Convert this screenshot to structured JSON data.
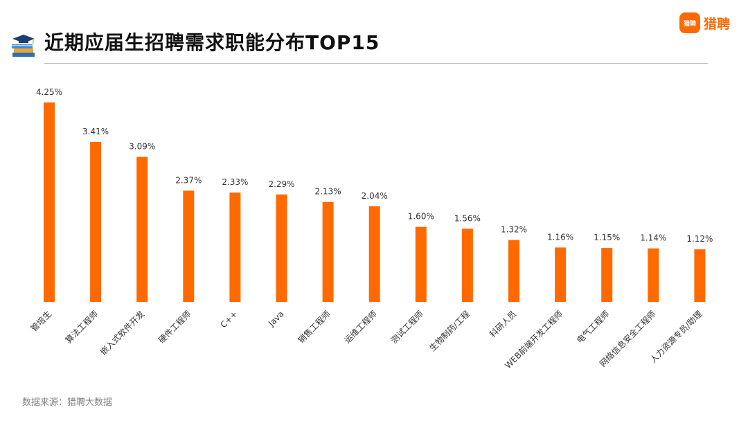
{
  "header": {
    "title": "近期应届生招聘需求职能分布TOP15",
    "icon": "graduation-books-icon",
    "brand_mark": "猎聘",
    "brand_text": "猎聘"
  },
  "source_note": "数据来源：猎聘大数据",
  "colors": {
    "bar": "#ff6a00",
    "title": "#111111",
    "label": "#333333",
    "source": "#7f7f7f"
  },
  "chart_data": {
    "type": "bar",
    "title": "近期应届生招聘需求职能分布TOP15",
    "categories": [
      "管培生",
      "算法工程师",
      "嵌入式软件开发",
      "硬件工程师",
      "C++",
      "Java",
      "销售工程师",
      "运维工程师",
      "测试工程师",
      "生物制药/工程",
      "科研人员",
      "WEB前端开发工程师",
      "电气工程师",
      "网络信息安全工程师",
      "人力资源专员/助理"
    ],
    "values": [
      4.25,
      3.41,
      3.09,
      2.37,
      2.33,
      2.29,
      2.13,
      2.04,
      1.6,
      1.56,
      1.32,
      1.16,
      1.15,
      1.14,
      1.12
    ],
    "value_labels": [
      "4.25%",
      "3.41%",
      "3.09%",
      "2.37%",
      "2.33%",
      "2.29%",
      "2.13%",
      "2.04%",
      "1.60%",
      "1.56%",
      "1.32%",
      "1.16%",
      "1.15%",
      "1.14%",
      "1.12%"
    ],
    "unit": "%",
    "ylim": [
      0,
      4.25
    ],
    "grid": false,
    "legend": "none"
  }
}
